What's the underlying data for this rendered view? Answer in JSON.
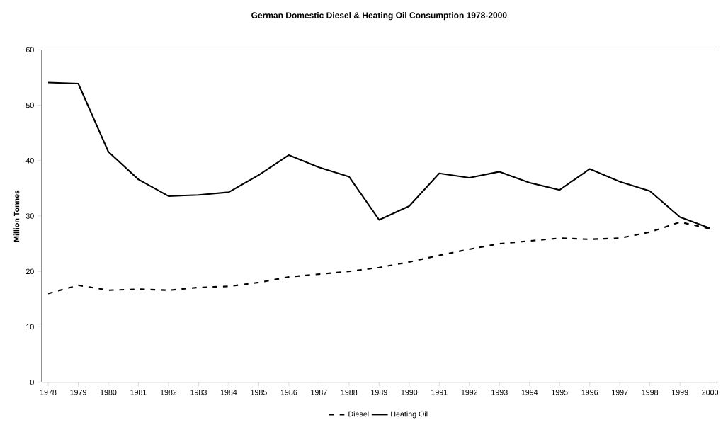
{
  "chart_data": {
    "type": "line",
    "title": "German Domestic Diesel & Heating Oil Consumption 1978-2000",
    "ylabel": "Million Tonnes",
    "categories": [
      "1978",
      "1979",
      "1980",
      "1981",
      "1982",
      "1983",
      "1984",
      "1985",
      "1986",
      "1987",
      "1988",
      "1989",
      "1990",
      "1991",
      "1992",
      "1993",
      "1994",
      "1995",
      "1996",
      "1997",
      "1998",
      "1999",
      "2000"
    ],
    "series": [
      {
        "name": "Diesel",
        "color": "#000000",
        "line_style": "dashed",
        "values": [
          16.0,
          17.5,
          16.6,
          16.8,
          16.6,
          17.1,
          17.3,
          18.0,
          19.0,
          19.5,
          20.0,
          20.7,
          21.7,
          22.9,
          24.0,
          25.0,
          25.5,
          26.0,
          25.8,
          26.0,
          27.1,
          28.9,
          27.7
        ]
      },
      {
        "name": "Heating Oil",
        "color": "#000000",
        "line_style": "solid",
        "values": [
          54.1,
          53.9,
          41.6,
          36.6,
          33.6,
          33.8,
          34.3,
          37.4,
          41.0,
          38.8,
          37.1,
          29.3,
          31.8,
          37.7,
          36.9,
          38.0,
          36.0,
          34.7,
          38.5,
          36.2,
          34.5,
          29.8,
          27.8
        ]
      }
    ],
    "ylim": [
      0,
      60
    ],
    "yticks": [
      0,
      10,
      20,
      30,
      40,
      50,
      60
    ],
    "grid": false,
    "legend": "bottom"
  }
}
